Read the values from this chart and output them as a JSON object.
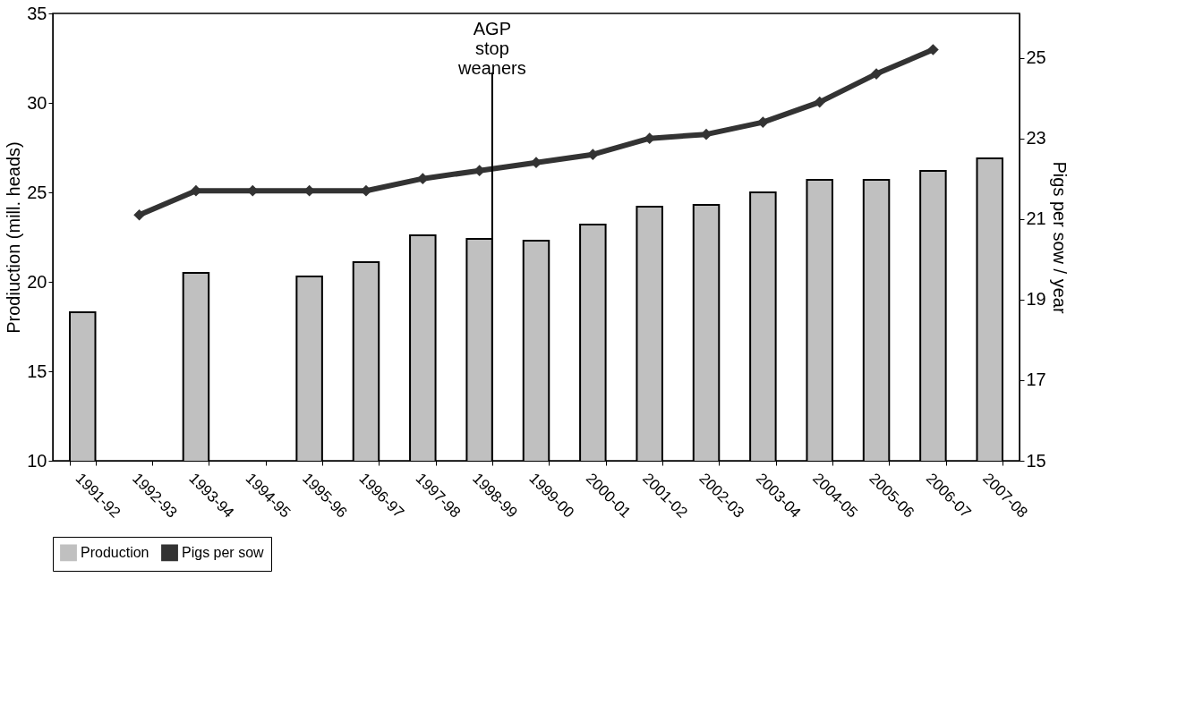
{
  "chart_data": {
    "type": "bar",
    "ylabel": "Prodiuction (mill. heads)",
    "y2label": "Pigs per sow / year",
    "categories": [
      "1991-92",
      "1992-93",
      "1993-94",
      "1994-95",
      "1995-96",
      "1996-97",
      "1997-98",
      "1998-99",
      "1999-00",
      "2000-01",
      "2001-02",
      "2002-03",
      "2003-04",
      "2004-05",
      "2005-06",
      "2006-07",
      "2007-08"
    ],
    "series": [
      {
        "name": "Production",
        "color": "#c0c0c0",
        "values": [
          18.3,
          null,
          20.5,
          null,
          20.3,
          21.1,
          22.6,
          22.4,
          22.3,
          23.2,
          24.2,
          24.3,
          25.0,
          25.7,
          25.7,
          26.2,
          26.9
        ]
      },
      {
        "name": "Pigs per sow",
        "type": "line",
        "axis": "y2",
        "color": "#333333",
        "marker": "diamond",
        "values": [
          null,
          21.1,
          21.7,
          21.7,
          21.7,
          21.7,
          22.0,
          22.2,
          22.4,
          22.6,
          23.0,
          23.1,
          23.4,
          23.9,
          24.6,
          25.2,
          null
        ]
      }
    ],
    "ylim": [
      10,
      35
    ],
    "yticks": [
      10,
      15,
      20,
      25,
      30,
      35
    ],
    "y2lim": [
      15,
      26.1
    ],
    "y2ticks": [
      15,
      17,
      19,
      21,
      23,
      25
    ],
    "ref_lines": [
      {
        "axis": "x",
        "value": "1998-99",
        "label": "AGP stop weaners",
        "color": "#000000"
      }
    ],
    "legend": "bottom",
    "grid": false
  }
}
